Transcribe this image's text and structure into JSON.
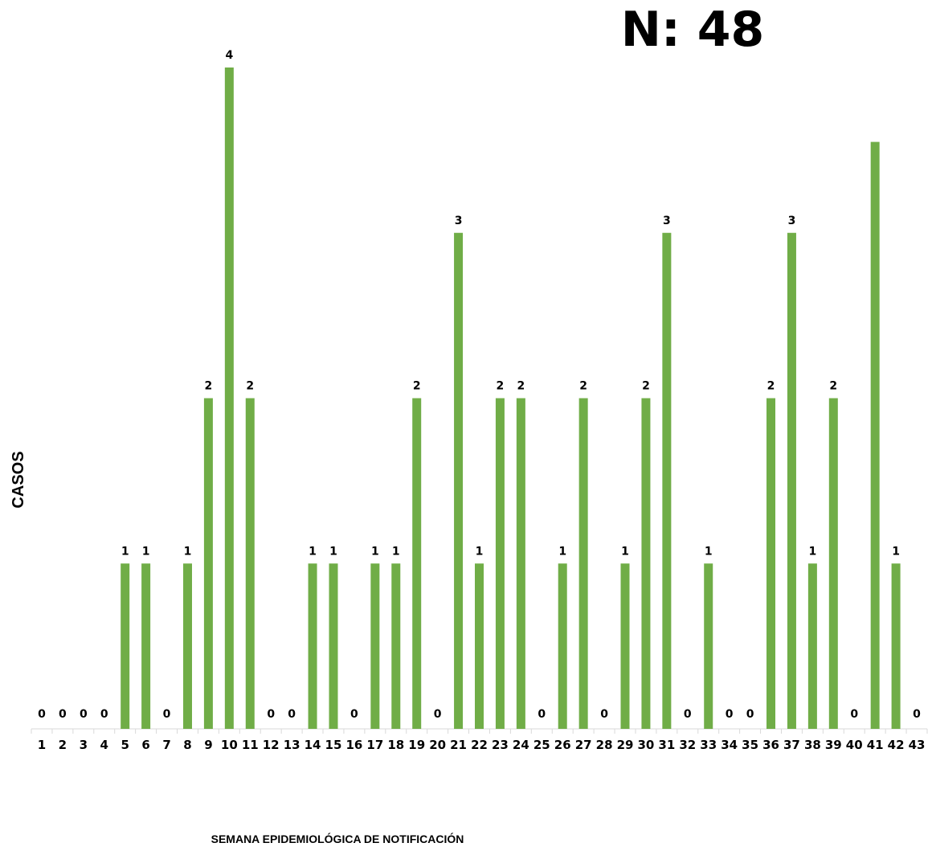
{
  "chart_data": {
    "type": "bar",
    "title": "N: 48",
    "xlabel": "SEMANA EPIDEMIOLÓGICA DE NOTIFICACIÓN",
    "ylabel": "CASOS",
    "ylim": [
      0,
      4.2
    ],
    "grid": false,
    "legend": "none",
    "bar_color": "#70AD47",
    "categories": [
      "1",
      "2",
      "3",
      "4",
      "5",
      "6",
      "7",
      "8",
      "9",
      "10",
      "11",
      "12",
      "13",
      "14",
      "15",
      "16",
      "17",
      "18",
      "19",
      "20",
      "21",
      "22",
      "23",
      "24",
      "25",
      "26",
      "27",
      "28",
      "29",
      "30",
      "31",
      "32",
      "33",
      "34",
      "35",
      "36",
      "37",
      "38",
      "39",
      "40",
      "41",
      "42",
      "43"
    ],
    "values": [
      0,
      0,
      0,
      0,
      1,
      1,
      0,
      1,
      2,
      4,
      2,
      0,
      0,
      1,
      1,
      0,
      1,
      1,
      2,
      0,
      3,
      1,
      2,
      2,
      0,
      1,
      2,
      0,
      1,
      2,
      3,
      0,
      1,
      0,
      0,
      2,
      3,
      1,
      2,
      0,
      3.55,
      1,
      0
    ],
    "data_labels": [
      "0",
      "0",
      "0",
      "0",
      "1",
      "1",
      "0",
      "1",
      "2",
      "4",
      "2",
      "0",
      "0",
      "1",
      "1",
      "0",
      "1",
      "1",
      "2",
      "0",
      "3",
      "1",
      "2",
      "2",
      "0",
      "1",
      "2",
      "0",
      "1",
      "2",
      "3",
      "0",
      "1",
      "0",
      "0",
      "2",
      "3",
      "1",
      "2",
      "0",
      "",
      "1",
      "0"
    ]
  }
}
